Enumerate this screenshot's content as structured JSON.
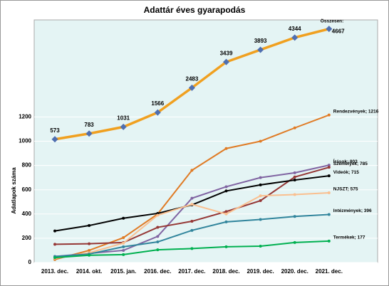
{
  "chart_data": {
    "type": "line",
    "title": "Adattár éves gyarapodás",
    "y_label": "Adatlapok száma",
    "categories": [
      "2013. dec.",
      "2014. okt.",
      "2015. jan.",
      "2016. dec.",
      "2017. dec.",
      "2018. dec.",
      "2019. dec.",
      "2020. dec.",
      "2021. dec."
    ],
    "ylim": [
      0,
      2000
    ],
    "yticks": [
      0,
      200,
      400,
      600,
      800,
      1000,
      1200
    ],
    "y2lim": [
      -4000,
      5000
    ],
    "grid": true,
    "background": "#e4f4f4",
    "series": [
      {
        "name": "Összesen:",
        "color": "#f0a020",
        "marker_color": "#4f6fb0",
        "axis": "y2",
        "values": [
          573,
          783,
          1031,
          1566,
          2483,
          3439,
          3893,
          4344,
          4667
        ]
      },
      {
        "name": "Rendezvények; 1216",
        "color": "#e07b25",
        "values": [
          25,
          100,
          205,
          400,
          760,
          940,
          1000,
          1110,
          1216
        ]
      },
      {
        "name": "Írások; 803",
        "color": "#8064a2",
        "values": [
          50,
          75,
          100,
          215,
          530,
          625,
          700,
          740,
          803
        ]
      },
      {
        "name": "Személyek; 785",
        "color": "#953735",
        "values": [
          150,
          155,
          165,
          290,
          340,
          420,
          510,
          705,
          785
        ]
      },
      {
        "name": "Videók; 715",
        "color": "#000000",
        "values": [
          260,
          305,
          365,
          405,
          475,
          590,
          640,
          680,
          715
        ]
      },
      {
        "name": "NJSZT; 575",
        "color": "#fabf8f",
        "values": [
          35,
          80,
          160,
          390,
          480,
          400,
          550,
          560,
          575
        ]
      },
      {
        "name": "Intézmények; 396",
        "color": "#31859c",
        "values": [
          50,
          70,
          130,
          170,
          265,
          335,
          355,
          380,
          396
        ]
      },
      {
        "name": "Termékek; 177",
        "color": "#00b050",
        "values": [
          40,
          60,
          65,
          105,
          115,
          130,
          135,
          165,
          177
        ]
      }
    ]
  }
}
